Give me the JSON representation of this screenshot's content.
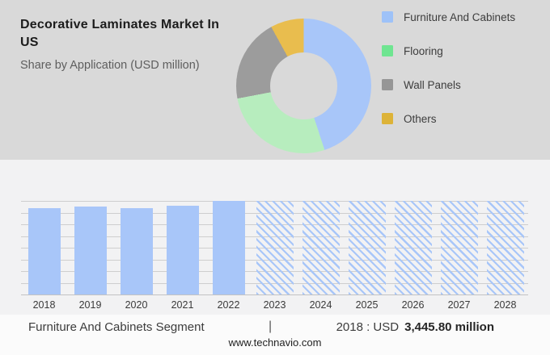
{
  "header": {
    "title": "Decorative Laminates Market In US",
    "subtitle": "Share by Application (USD million)"
  },
  "colors": {
    "header_bg": "#d9d9d9",
    "chart_bg": "#f2f2f3",
    "footer_bg": "#fbfbfb",
    "bar_blue": "#a8c6f9",
    "gridline": "#cecece",
    "axis_baseline": "#c3c3c3"
  },
  "chart_data": [
    {
      "type": "pie",
      "donut": true,
      "title": "Share by Application (USD million)",
      "legend_position": "right",
      "segments": [
        {
          "label": "Furniture And Cabinets",
          "share_pct": 45,
          "color": "#a8c6f9",
          "legend_color": "#9ec2f8"
        },
        {
          "label": "Flooring",
          "share_pct": 27,
          "color": "#b7edbe",
          "legend_color": "#6fe591"
        },
        {
          "label": "Wall Panels",
          "share_pct": 20,
          "color": "#9c9c9c",
          "legend_color": "#969696"
        },
        {
          "label": "Others",
          "share_pct": 8,
          "color": "#e9bd4e",
          "legend_color": "#ddb338"
        }
      ]
    },
    {
      "type": "bar",
      "title": "Decorative Laminates Market In US (2018-2028)",
      "categories": [
        "2018",
        "2019",
        "2020",
        "2021",
        "2022",
        "2023",
        "2024",
        "2025",
        "2026",
        "2027",
        "2028"
      ],
      "values_relative_pct": [
        92,
        94,
        92,
        95,
        100,
        100,
        100,
        100,
        100,
        100,
        100
      ],
      "styles": [
        "solid",
        "solid",
        "solid",
        "solid",
        "solid",
        "hatched",
        "hatched",
        "hatched",
        "hatched",
        "hatched",
        "hatched"
      ],
      "forecast_from": "2023",
      "y_axis_unlabeled": true,
      "gridline_count": 9,
      "grid": "horizontal"
    }
  ],
  "footer": {
    "segment_label": "Furniture And Cabinets Segment",
    "divider": "|",
    "value_prefix": "2018 : USD",
    "value_bold": "3,445.80 million",
    "website": "www.technavio.com"
  }
}
